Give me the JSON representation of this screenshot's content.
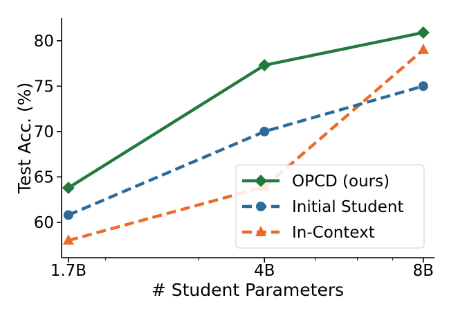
{
  "chart_data": {
    "type": "line",
    "title": "",
    "xlabel": "# Student Parameters",
    "ylabel": "Test Acc. (%)",
    "x_scale": "log",
    "x_ticks": [
      {
        "value": 1.7,
        "label": "1.7B"
      },
      {
        "value": 4,
        "label": "4B"
      },
      {
        "value": 8,
        "label": "8B"
      }
    ],
    "y_ticks": [
      60,
      65,
      70,
      75,
      80
    ],
    "xlim": [
      1.65,
      8.4
    ],
    "ylim": [
      56.1,
      82.5
    ],
    "grid": false,
    "legend_position": "bottom-right",
    "series": [
      {
        "name": "OPCD (ours)",
        "color": "#217a3c",
        "marker": "diamond",
        "linestyle": "solid",
        "x": [
          1.7,
          4,
          8
        ],
        "values": [
          63.8,
          77.3,
          80.9
        ]
      },
      {
        "name": "Initial Student",
        "color": "#2e6a98",
        "marker": "circle",
        "linestyle": "dashed",
        "x": [
          1.7,
          4,
          8
        ],
        "values": [
          60.8,
          70.0,
          75.0
        ]
      },
      {
        "name": "In-Context",
        "color": "#ec6b29",
        "marker": "triangle",
        "linestyle": "dashed",
        "x": [
          1.7,
          4,
          8
        ],
        "values": [
          58.0,
          63.9,
          79.0
        ]
      }
    ]
  }
}
